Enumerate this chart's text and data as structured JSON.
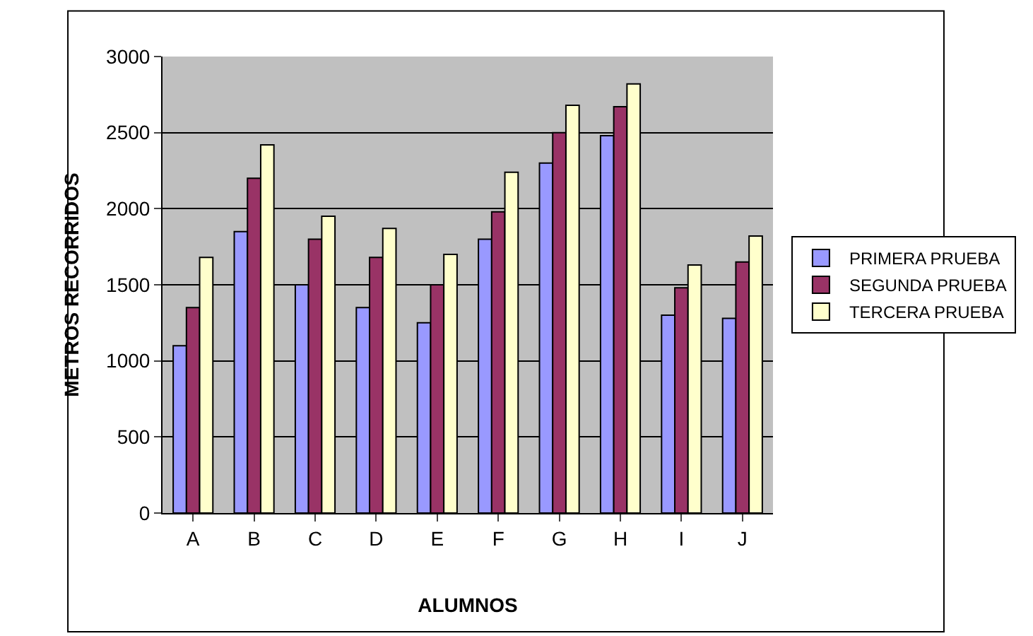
{
  "chart_data": {
    "type": "bar",
    "xlabel": "ALUMNOS",
    "ylabel": "METROS RECORRIDOS",
    "categories": [
      "A",
      "B",
      "C",
      "D",
      "E",
      "F",
      "G",
      "H",
      "I",
      "J"
    ],
    "series": [
      {
        "name": "PRIMERA PRUEBA",
        "color": "#9999ff",
        "values": [
          1100,
          1850,
          1500,
          1350,
          1250,
          1800,
          2300,
          2480,
          1300,
          1280
        ]
      },
      {
        "name": "SEGUNDA PRUEBA",
        "color": "#993366",
        "values": [
          1350,
          2200,
          1800,
          1680,
          1500,
          1980,
          2500,
          2670,
          1480,
          1650
        ]
      },
      {
        "name": "TERCERA PRUEBA",
        "color": "#ffffcc",
        "values": [
          1680,
          2420,
          1950,
          1870,
          1700,
          2240,
          2680,
          2820,
          1630,
          1820
        ]
      }
    ],
    "ylim": [
      0,
      3000
    ],
    "yticks": [
      0,
      500,
      1000,
      1500,
      2000,
      2500,
      3000
    ],
    "grid": "y",
    "legend": "right"
  }
}
